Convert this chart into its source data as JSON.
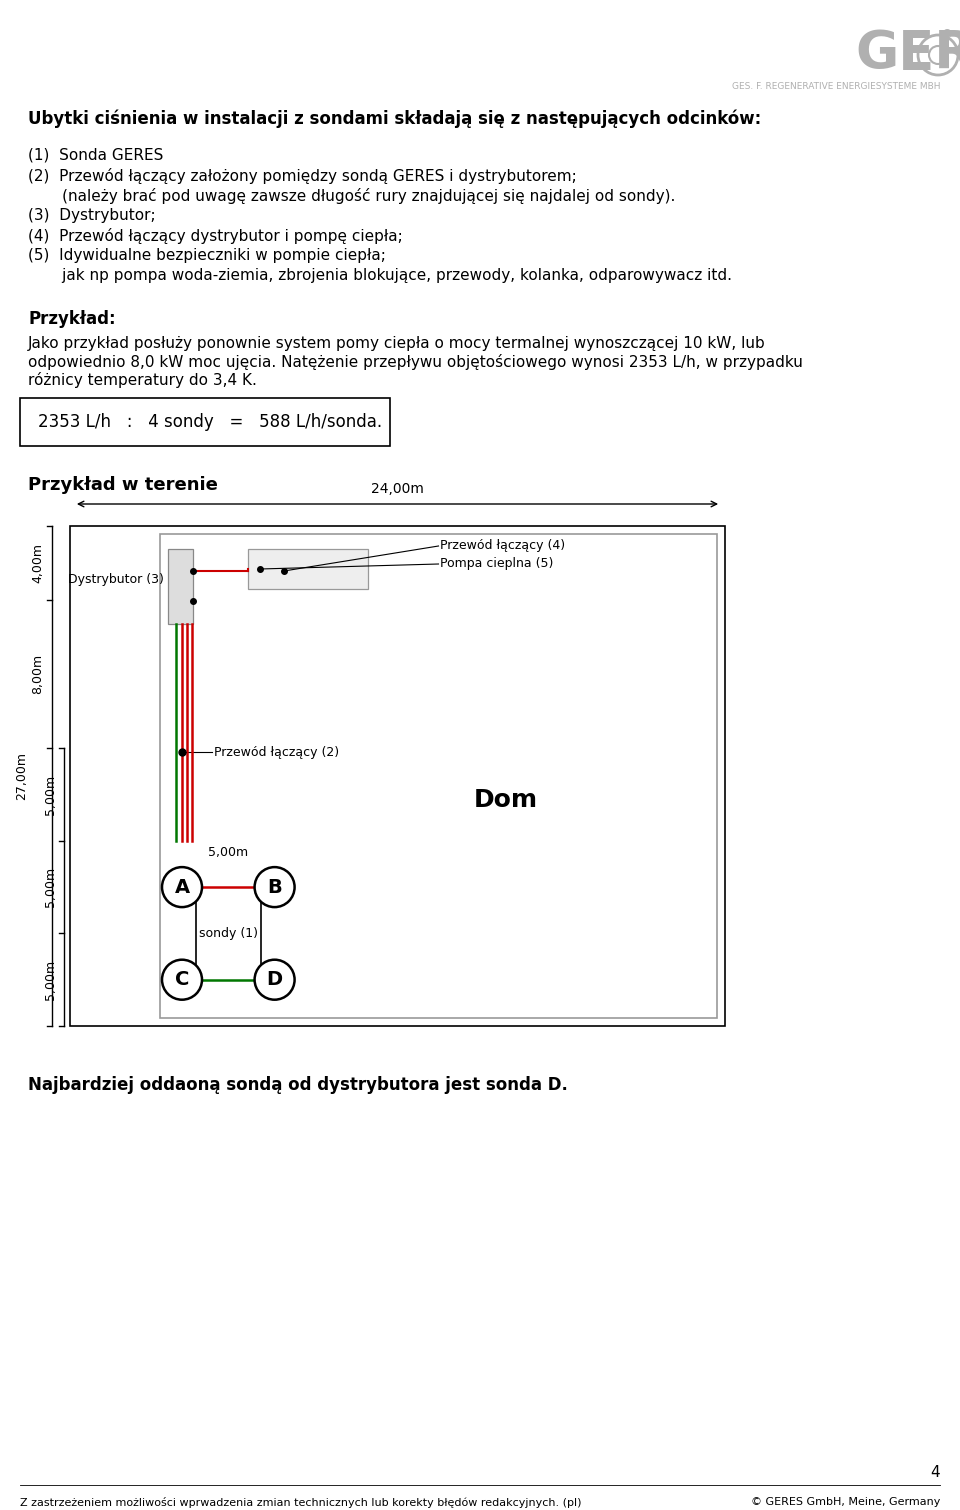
{
  "title_bold": "Ubytki ciśnienia w instalacji z sondami składają się z następujących odcinków:",
  "item1": "(1)  Sonda GERES",
  "item2": "(2)  Przewód łączący założony pomiędzy sondą GERES i dystrybutorem;",
  "item2b": "       (należy brać pod uwagę zawsze długość rury znajdującej się najdalej od sondy).",
  "item3": "(3)  Dystrybutor;",
  "item4": "(4)  Przewód łączący dystrybutor i pompę ciepła;",
  "item5": "(5)  Idywidualne bezpieczniki w pompie ciepła;",
  "item5b": "       jak np pompa woda-ziemia, zbrojenia blokujące, przewody, kolanka, odparowywacz itd.",
  "przyklad_title": "Przykład:",
  "przyklad_text1": "Jako przykład posłuży ponownie system pomy ciepła o mocy termalnej wynoszczącej 10 kW, lub",
  "przyklad_text2": "odpowiednio 8,0 kW moc ujęcia. Natężenie przepływu objętościowego wynosi 2353 L/h, w przypadku",
  "przyklad_text3": "różnicy temperatury do 3,4 K.",
  "formula_text": "2353 L/h   :   4 sondy   =   588 L/h/sonda.",
  "przyklad_w_terenie": "Przykład w terenie",
  "dim_24": "24,00m",
  "dim_4": "4,00m",
  "dim_8": "8,00m",
  "dim_27": "27,00m",
  "dim_5a": "5,00m",
  "dim_5b": "5,00m",
  "dim_5c": "5,00m",
  "label_przewod4": "Przewód łączący (4)",
  "label_pompa": "Pompa cieplna (5)",
  "label_dystrybutor": "Dystrybutor (3)",
  "label_dom": "Dom",
  "label_przewod2": "Przewód łączący (2)",
  "label_sondy": "sondy (1)",
  "label_5m": "5,00m",
  "bottom_text": "Najbardziej oddaoną sondą od dystrybutora jest sonda D.",
  "bottom_legal": "Z zastrzeżeniem możliwości wprwadzenia zmian technicznych lub korekty błędów redakcyjnych. (pl)",
  "bottom_right": "© GERES GmbH, Meine, Germany",
  "page_num": "4",
  "bg_color": "#ffffff",
  "text_color": "#000000",
  "logo_color": "#b0b0b0",
  "red_line": "#cc0000",
  "green_line": "#007700"
}
